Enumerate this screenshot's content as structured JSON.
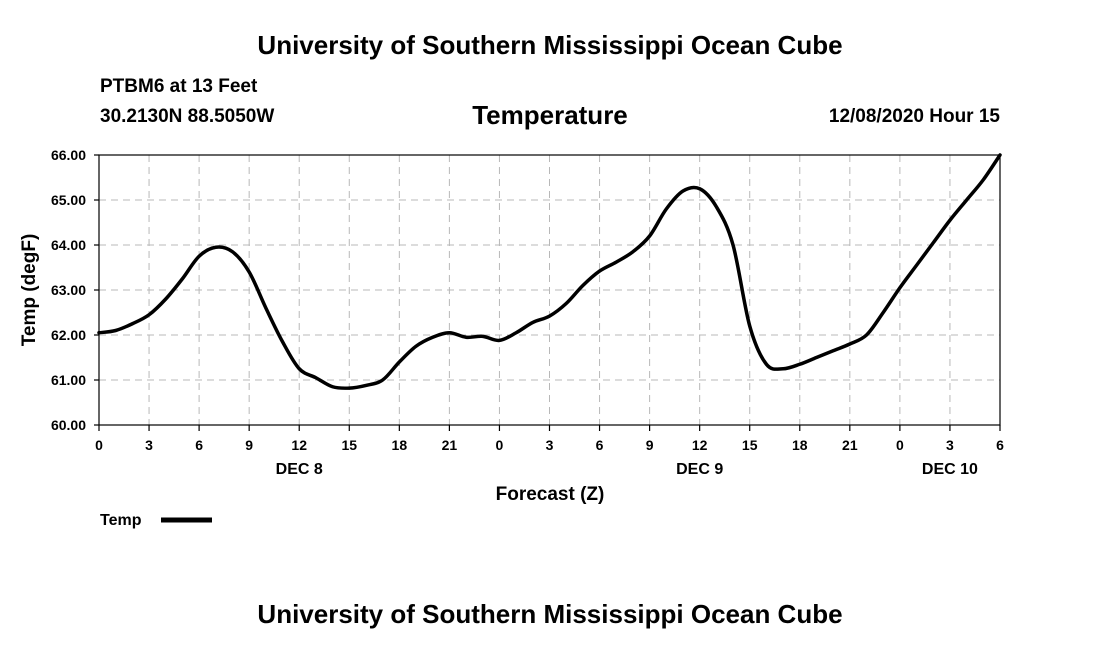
{
  "header": {
    "title_top": "University of Southern Mississippi Ocean Cube",
    "title_bottom": "University of Southern Mississippi Ocean Cube",
    "station": "PTBM6 at 13 Feet",
    "coordinates": "30.2130N 88.5050W",
    "datetime": "12/08/2020 Hour 15"
  },
  "chart_data": {
    "type": "line",
    "title": "Temperature",
    "xlabel": "Forecast (Z)",
    "ylabel": "Temp (degF)",
    "ylim": [
      60.0,
      66.0
    ],
    "y_ticks": [
      "60.00",
      "61.00",
      "62.00",
      "63.00",
      "64.00",
      "65.00",
      "66.00"
    ],
    "xlim": [
      0,
      54
    ],
    "x_ticks": [
      "0",
      "3",
      "6",
      "9",
      "12",
      "15",
      "18",
      "21",
      "0",
      "3",
      "6",
      "9",
      "12",
      "15",
      "18",
      "21",
      "0",
      "3",
      "6"
    ],
    "day_labels": [
      {
        "hour": 12,
        "label": "DEC 8"
      },
      {
        "hour": 36,
        "label": "DEC 9"
      },
      {
        "hour": 51,
        "label": "DEC 10"
      }
    ],
    "grid": true,
    "legend": {
      "placement": "bottom-left",
      "label": "Temp"
    },
    "series": [
      {
        "name": "Temp",
        "color": "#000000",
        "x": [
          0,
          1,
          2,
          3,
          4,
          5,
          6,
          7,
          8,
          9,
          10,
          11,
          12,
          13,
          14,
          15,
          16,
          17,
          18,
          19,
          20,
          21,
          22,
          23,
          24,
          25,
          26,
          27,
          28,
          29,
          30,
          31,
          32,
          33,
          34,
          35,
          36,
          37,
          38,
          39,
          40,
          41,
          42,
          43,
          44,
          45,
          46,
          47,
          48,
          49,
          50,
          51,
          52,
          53,
          54
        ],
        "values": [
          62.05,
          62.1,
          62.25,
          62.45,
          62.8,
          63.25,
          63.75,
          63.95,
          63.85,
          63.4,
          62.6,
          61.85,
          61.25,
          61.05,
          60.85,
          60.82,
          60.88,
          61.0,
          61.4,
          61.75,
          61.95,
          62.05,
          61.95,
          61.97,
          61.88,
          62.05,
          62.28,
          62.42,
          62.7,
          63.1,
          63.42,
          63.62,
          63.85,
          64.2,
          64.8,
          65.2,
          65.25,
          64.85,
          64.0,
          62.2,
          61.35,
          61.25,
          61.35,
          61.5,
          61.65,
          61.8,
          62.0,
          62.5,
          63.05,
          63.55,
          64.05,
          64.55,
          65.0,
          65.45,
          66.0
        ]
      }
    ]
  }
}
